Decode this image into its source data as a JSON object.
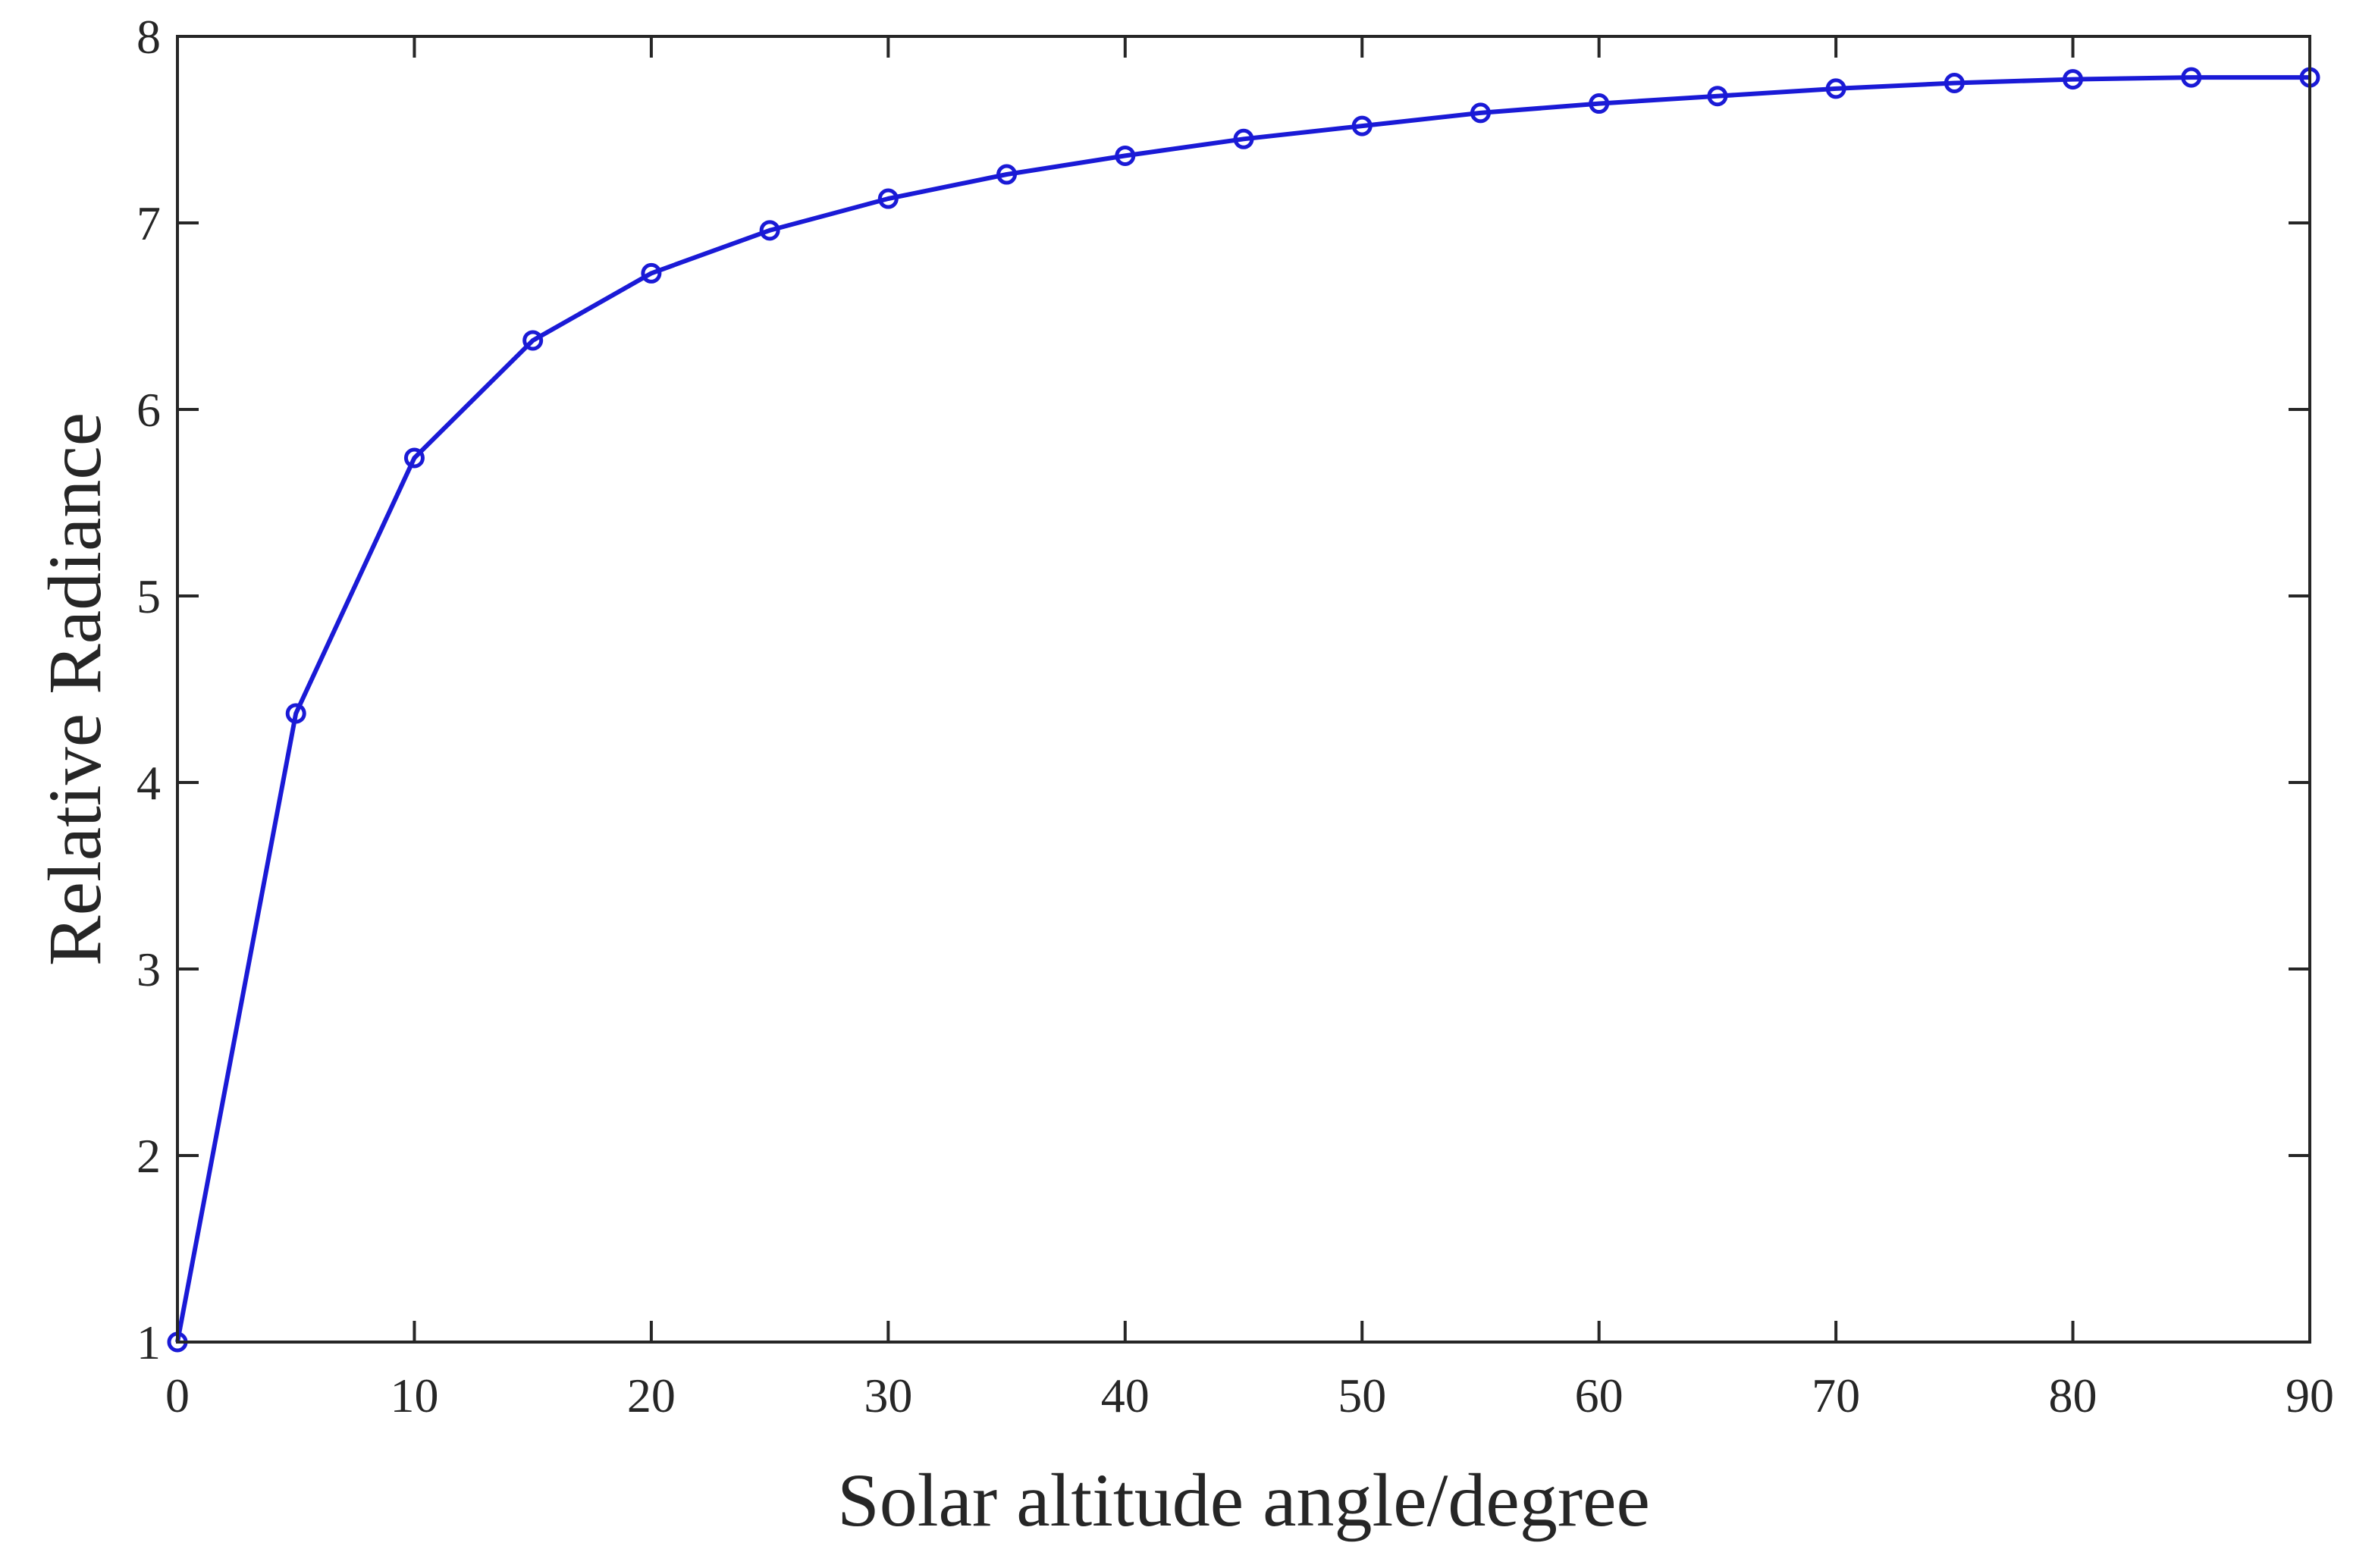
{
  "chart_data": {
    "type": "line",
    "title": "",
    "xlabel": "Solar altitude angle/degree",
    "ylabel": "Relative Radiance",
    "xlim": [
      0,
      90
    ],
    "ylim": [
      1,
      8
    ],
    "xticks": [
      0,
      10,
      20,
      30,
      40,
      50,
      60,
      70,
      80,
      90
    ],
    "yticks": [
      1,
      2,
      3,
      4,
      5,
      6,
      7,
      8
    ],
    "xtick_labels": [
      "0",
      "10",
      "20",
      "30",
      "40",
      "50",
      "60",
      "70",
      "80",
      "90"
    ],
    "ytick_labels": [
      "1",
      "2",
      "3",
      "4",
      "5",
      "6",
      "7",
      "8"
    ],
    "grid": false,
    "legend": "none",
    "series": [
      {
        "name": "Relative Radiance",
        "color": "#1a1ad6",
        "marker": "circle",
        "x": [
          0,
          5,
          10,
          15,
          20,
          25,
          30,
          35,
          40,
          45,
          50,
          55,
          60,
          65,
          70,
          75,
          80,
          85,
          90
        ],
        "y": [
          1.0,
          4.37,
          5.74,
          6.37,
          6.73,
          6.96,
          7.13,
          7.26,
          7.36,
          7.45,
          7.52,
          7.59,
          7.64,
          7.68,
          7.72,
          7.75,
          7.77,
          7.78,
          7.78
        ]
      }
    ]
  }
}
